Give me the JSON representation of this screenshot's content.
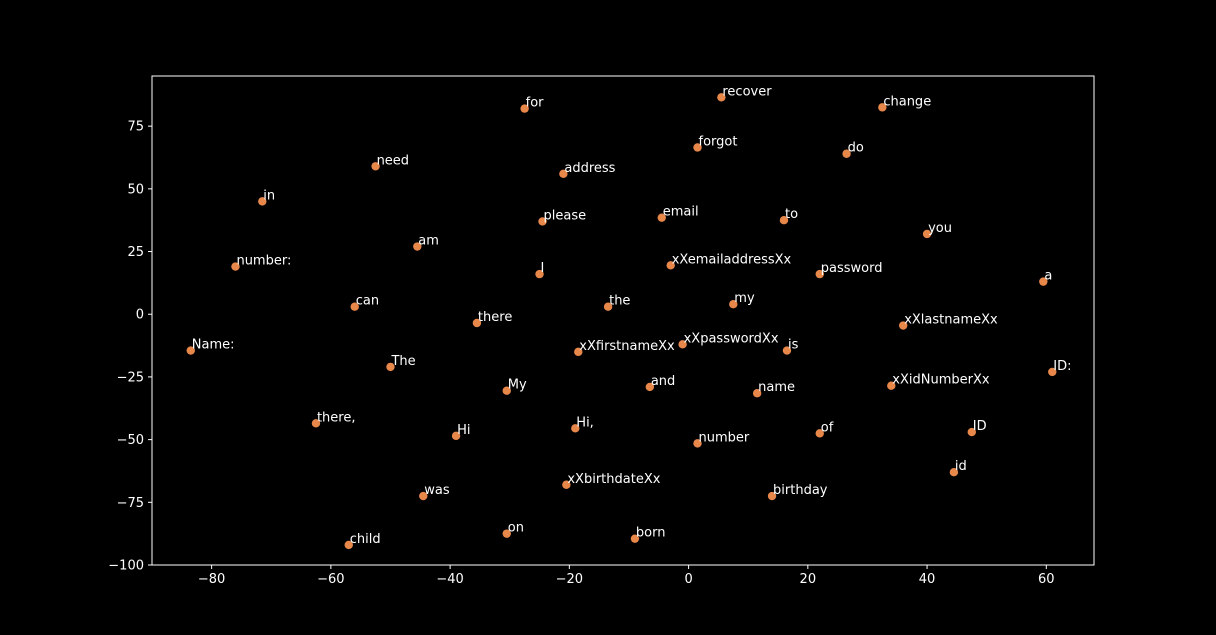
{
  "chart_data": {
    "type": "scatter",
    "title": "",
    "xlabel": "",
    "ylabel": "",
    "xlim": [
      -90,
      68
    ],
    "ylim": [
      -100,
      95
    ],
    "xticks": [
      -80,
      -60,
      -40,
      -20,
      0,
      20,
      40,
      60
    ],
    "yticks": [
      -100,
      -75,
      -50,
      -25,
      0,
      25,
      50,
      75
    ],
    "grid": false,
    "colors": {
      "background": "#000000",
      "axes": "#ffffff",
      "point": "#e8874a",
      "text": "#ffffff"
    },
    "points": [
      {
        "label": "for",
        "x": -27.5,
        "y": 82
      },
      {
        "label": "recover",
        "x": 5.5,
        "y": 86.5
      },
      {
        "label": "change",
        "x": 32.5,
        "y": 82.5
      },
      {
        "label": "forgot",
        "x": 1.5,
        "y": 66.5
      },
      {
        "label": "do",
        "x": 26.5,
        "y": 64
      },
      {
        "label": "need",
        "x": -52.5,
        "y": 59
      },
      {
        "label": "address",
        "x": -21,
        "y": 56
      },
      {
        "label": "in",
        "x": -71.5,
        "y": 45
      },
      {
        "label": "please",
        "x": -24.5,
        "y": 37
      },
      {
        "label": "email",
        "x": -4.5,
        "y": 38.5
      },
      {
        "label": "to",
        "x": 16,
        "y": 37.5
      },
      {
        "label": "you",
        "x": 40,
        "y": 32
      },
      {
        "label": "am",
        "x": -45.5,
        "y": 27
      },
      {
        "label": "number:",
        "x": -76,
        "y": 19
      },
      {
        "label": "I",
        "x": -25,
        "y": 16
      },
      {
        "label": "xXemailaddressXx",
        "x": -3,
        "y": 19.5
      },
      {
        "label": "password",
        "x": 22,
        "y": 16
      },
      {
        "label": "a",
        "x": 59.5,
        "y": 13
      },
      {
        "label": "can",
        "x": -56,
        "y": 3
      },
      {
        "label": "the",
        "x": -13.5,
        "y": 3
      },
      {
        "label": "my",
        "x": 7.5,
        "y": 4
      },
      {
        "label": "there",
        "x": -35.5,
        "y": -3.5
      },
      {
        "label": "xXlastnameXx",
        "x": 36,
        "y": -4.5
      },
      {
        "label": "Name:",
        "x": -83.5,
        "y": -14.5
      },
      {
        "label": "xXpasswordXx",
        "x": -1,
        "y": -12
      },
      {
        "label": "xXfirstnameXx",
        "x": -18.5,
        "y": -15
      },
      {
        "label": "is",
        "x": 16.5,
        "y": -14.5
      },
      {
        "label": "The",
        "x": -50,
        "y": -21
      },
      {
        "label": "ID:",
        "x": 61,
        "y": -23
      },
      {
        "label": "My",
        "x": -30.5,
        "y": -30.5
      },
      {
        "label": "and",
        "x": -6.5,
        "y": -29
      },
      {
        "label": "name",
        "x": 11.5,
        "y": -31.5
      },
      {
        "label": "xXidNumberXx",
        "x": 34,
        "y": -28.5
      },
      {
        "label": "there,",
        "x": -62.5,
        "y": -43.5
      },
      {
        "label": "Hi,",
        "x": -19,
        "y": -45.5
      },
      {
        "label": "Hi",
        "x": -39,
        "y": -48.5
      },
      {
        "label": "number",
        "x": 1.5,
        "y": -51.5
      },
      {
        "label": "of",
        "x": 22,
        "y": -47.5
      },
      {
        "label": "ID",
        "x": 47.5,
        "y": -47
      },
      {
        "label": "id",
        "x": 44.5,
        "y": -63
      },
      {
        "label": "xXbirthdateXx",
        "x": -20.5,
        "y": -68
      },
      {
        "label": "was",
        "x": -44.5,
        "y": -72.5
      },
      {
        "label": "birthday",
        "x": 14,
        "y": -72.5
      },
      {
        "label": "on",
        "x": -30.5,
        "y": -87.5
      },
      {
        "label": "born",
        "x": -9,
        "y": -89.5
      },
      {
        "label": "child",
        "x": -57,
        "y": -92
      }
    ]
  }
}
